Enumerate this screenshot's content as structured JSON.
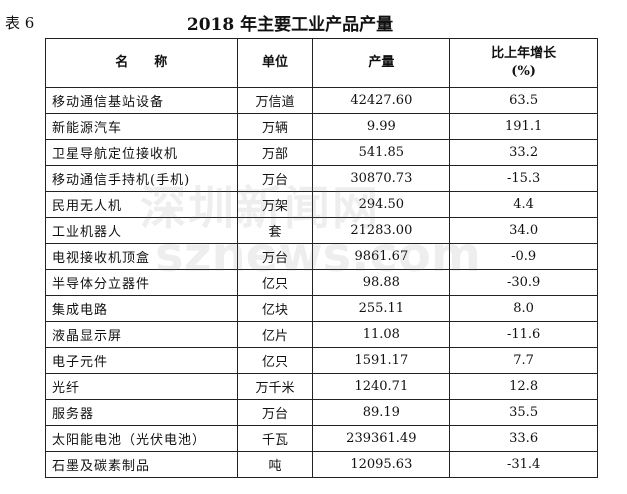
{
  "label": "表 6",
  "title": "2018 年主要工业产品产量",
  "watermark": [
    "深圳新闻网",
    "sznews.com"
  ],
  "table": {
    "header": [
      "名　　称",
      "单位",
      "产量",
      "比上年增长\n(%)"
    ],
    "rows": [
      [
        "移动通信基站设备",
        "万信道",
        "42427.60",
        "63.5"
      ],
      [
        "新能源汽车",
        "万辆",
        "9.99",
        "191.1"
      ],
      [
        "卫星导航定位接收机",
        "万部",
        "541.85",
        "33.2"
      ],
      [
        "移动通信手持机(手机)",
        "万台",
        "30870.73",
        "-15.3"
      ],
      [
        "民用无人机",
        "万架",
        "294.50",
        "4.4"
      ],
      [
        "工业机器人",
        "套",
        "21283.00",
        "34.0"
      ],
      [
        "电视接收机顶盒",
        "万台",
        "9861.67",
        "-0.9"
      ],
      [
        "半导体分立器件",
        "亿只",
        "98.88",
        "-30.9"
      ],
      [
        "集成电路",
        "亿块",
        "255.11",
        "8.0"
      ],
      [
        "液晶显示屏",
        "亿片",
        "11.08",
        "-11.6"
      ],
      [
        "电子元件",
        "亿只",
        "1591.17",
        "7.7"
      ],
      [
        "光纤",
        "万千米",
        "1240.71",
        "12.8"
      ],
      [
        "服务器",
        "万台",
        "89.19",
        "35.5"
      ],
      [
        "太阳能电池（光伏电池）",
        "千瓦",
        "239361.49",
        "33.6"
      ],
      [
        "石墨及碳素制品",
        "吨",
        "12095.63",
        "-31.4"
      ]
    ]
  }
}
